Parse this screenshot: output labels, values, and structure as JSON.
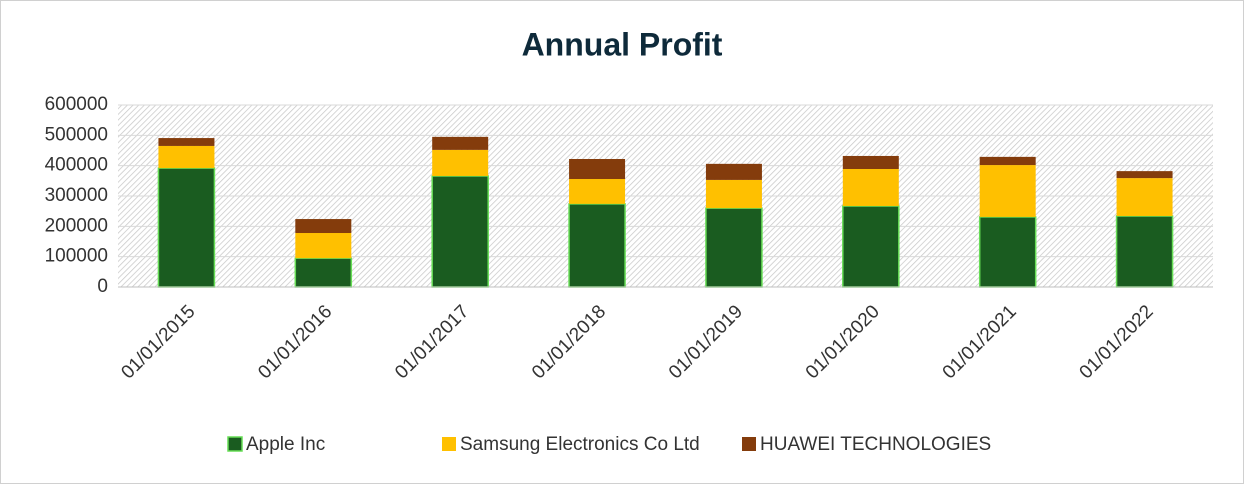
{
  "chart_data": {
    "type": "stacked_bar",
    "title": "Annual Profit",
    "categories": [
      "01/01/2015",
      "01/01/2016",
      "01/01/2017",
      "01/01/2018",
      "01/01/2019",
      "01/01/2020",
      "01/01/2021",
      "01/01/2022"
    ],
    "series": [
      {
        "name": "Apple Inc",
        "color": "#1a5c20",
        "values": [
          392000,
          95000,
          366000,
          274000,
          260000,
          267000,
          231000,
          234000
        ]
      },
      {
        "name": "Samsung Electronics Co Ltd",
        "color": "#ffc000",
        "values": [
          73000,
          83000,
          86000,
          82000,
          93000,
          122000,
          171000,
          125000
        ]
      },
      {
        "name": "HUAWEI TECHNOLOGIES",
        "color": "#843c0c",
        "values": [
          26000,
          46000,
          43000,
          66000,
          53000,
          43000,
          27000,
          23000
        ]
      }
    ],
    "ylim": [
      0,
      600000
    ],
    "yticks": [
      0,
      100000,
      200000,
      300000,
      400000,
      500000,
      600000
    ],
    "grid": true,
    "legend": "bottom"
  }
}
